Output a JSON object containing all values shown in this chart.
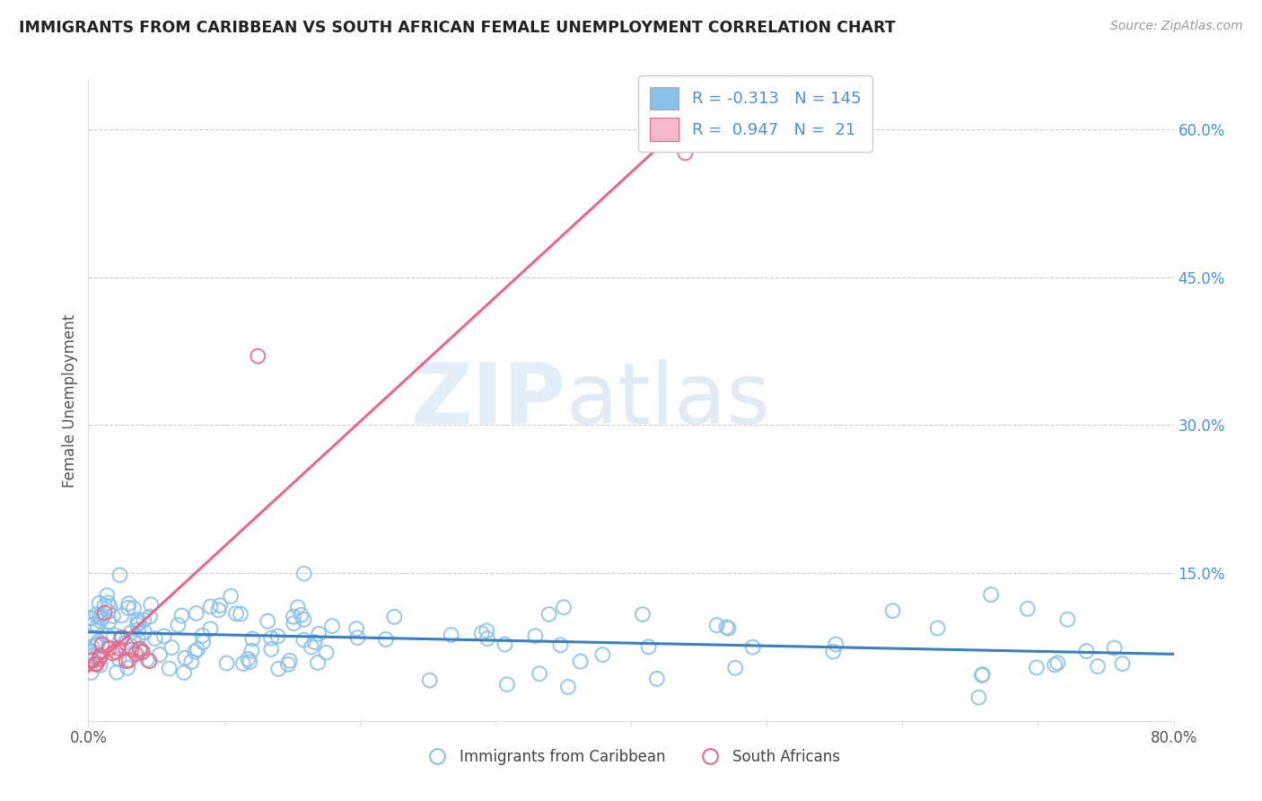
{
  "title": "IMMIGRANTS FROM CARIBBEAN VS SOUTH AFRICAN FEMALE UNEMPLOYMENT CORRELATION CHART",
  "source": "Source: ZipAtlas.com",
  "ylabel": "Female Unemployment",
  "watermark_zip": "ZIP",
  "watermark_atlas": "atlas",
  "xlim": [
    0.0,
    0.8
  ],
  "ylim": [
    0.0,
    0.65
  ],
  "blue_color": "#89c0e8",
  "blue_edge_color": "#5a9fd4",
  "pink_color": "#f5b8c8",
  "pink_edge_color": "#e8688a",
  "blue_line_color": "#3a7fc1",
  "pink_line_color": "#e8688a",
  "legend_R1": "-0.313",
  "legend_N1": "145",
  "legend_R2": "0.947",
  "legend_N2": "21",
  "legend_label_blue": "Immigrants from Caribbean",
  "legend_label_pink": "South Africans"
}
